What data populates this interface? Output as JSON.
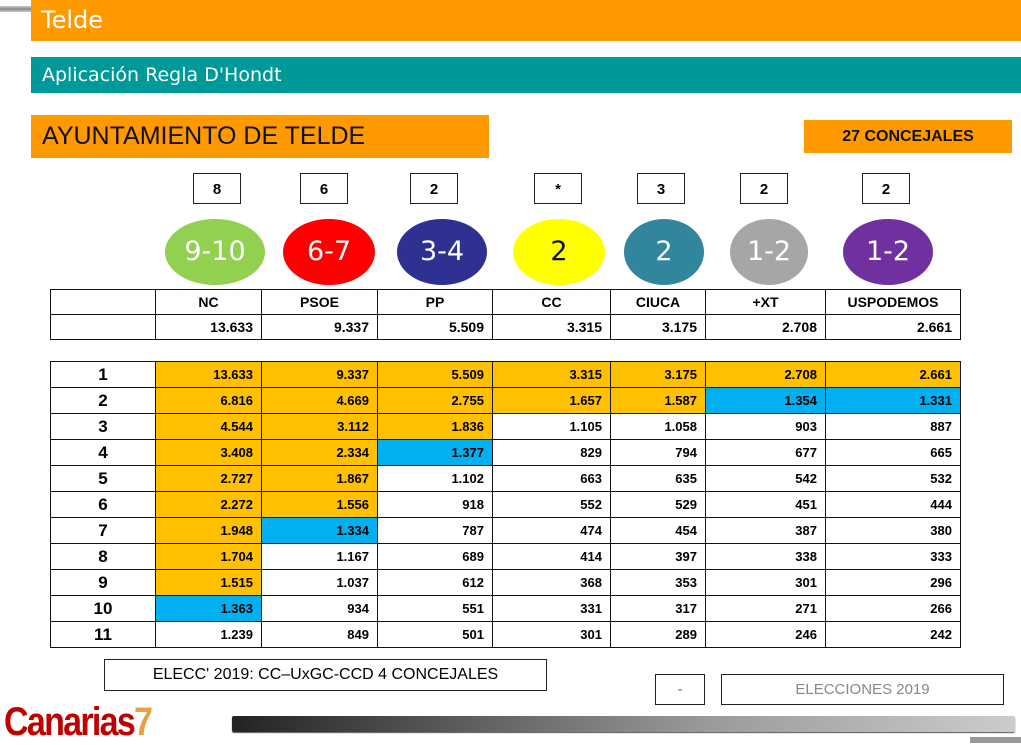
{
  "header": {
    "title": "Telde",
    "subtitle": "Aplicación Regla D'Hondt"
  },
  "section_title": "AYUNTAMIENTO DE TELDE",
  "total_label": "27 CONCEJALES",
  "colors": {
    "won": "#FFC000",
    "doubtful": "#00B0F0"
  },
  "parties": [
    {
      "name": "NC",
      "seats": "8",
      "range": "9-10",
      "color": "#92D050",
      "votes": "13.633",
      "won_rows": 9,
      "doubtful_row": 10
    },
    {
      "name": "PSOE",
      "seats": "6",
      "range": "6-7",
      "color": "#FF0000",
      "votes": "9.337",
      "won_rows": 6,
      "doubtful_row": 7
    },
    {
      "name": "PP",
      "seats": "2",
      "range": "3-4",
      "color": "#2E3192",
      "votes": "5.509",
      "won_rows": 3,
      "doubtful_row": 4
    },
    {
      "name": "CC",
      "seats": "*",
      "range": "2",
      "color": "#FFFF00",
      "votes": "3.315",
      "won_rows": 2,
      "doubtful_row": null
    },
    {
      "name": "CIUCA",
      "seats": "3",
      "range": "2",
      "color": "#31859C",
      "votes": "3.175",
      "won_rows": 2,
      "doubtful_row": null
    },
    {
      "name": "+XT",
      "seats": "2",
      "range": "1-2",
      "color": "#A6A6A6",
      "votes": "2.708",
      "won_rows": 1,
      "doubtful_row": 2
    },
    {
      "name": "USPODEMOS",
      "seats": "2",
      "range": "1-2",
      "color": "#7030A0",
      "votes": "2.661",
      "won_rows": 1,
      "doubtful_row": 2
    }
  ],
  "divisors": [
    "1",
    "2",
    "3",
    "4",
    "5",
    "6",
    "7",
    "8",
    "9",
    "10",
    "11"
  ],
  "quotients": [
    [
      "13.633",
      "9.337",
      "5.509",
      "3.315",
      "3.175",
      "2.708",
      "2.661"
    ],
    [
      "6.816",
      "4.669",
      "2.755",
      "1.657",
      "1.587",
      "1.354",
      "1.331"
    ],
    [
      "4.544",
      "3.112",
      "1.836",
      "1.105",
      "1.058",
      "903",
      "887"
    ],
    [
      "3.408",
      "2.334",
      "1.377",
      "829",
      "794",
      "677",
      "665"
    ],
    [
      "2.727",
      "1.867",
      "1.102",
      "663",
      "635",
      "542",
      "532"
    ],
    [
      "2.272",
      "1.556",
      "918",
      "552",
      "529",
      "451",
      "444"
    ],
    [
      "1.948",
      "1.334",
      "787",
      "474",
      "454",
      "387",
      "380"
    ],
    [
      "1.704",
      "1.167",
      "689",
      "414",
      "397",
      "338",
      "333"
    ],
    [
      "1.515",
      "1.037",
      "612",
      "368",
      "353",
      "301",
      "296"
    ],
    [
      "1.363",
      "934",
      "551",
      "331",
      "317",
      "271",
      "266"
    ],
    [
      "1.239",
      "849",
      "501",
      "301",
      "289",
      "246",
      "242"
    ]
  ],
  "footer": {
    "note": "ELECC' 2019:  CC–UxGC-CCD   4 CONCEJALES",
    "dash": "-",
    "elections": "ELECCIONES 2019",
    "logo": "Canarias7"
  }
}
